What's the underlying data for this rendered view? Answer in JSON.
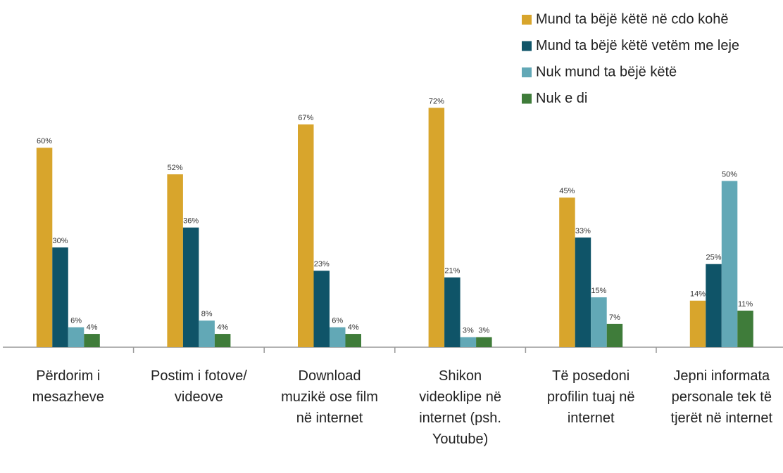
{
  "chart_data": {
    "type": "bar",
    "categories": [
      "Përdorim i mesazheve",
      "Postim i fotove/ videove",
      "Download muzikë ose film në internet",
      "Shikon videoklipe në internet (psh. Youtube)",
      "Të posedoni profilin tuaj në internet",
      "Jepni informata personale tek të tjerët në internet"
    ],
    "series": [
      {
        "name": "Mund ta bëjë këtë në cdo kohë",
        "color": "#d8a52c",
        "values": [
          60,
          52,
          67,
          72,
          45,
          14
        ],
        "value_labels": [
          "60%",
          "52%",
          "67%",
          "72%",
          "45%",
          "14%"
        ]
      },
      {
        "name": "Mund ta bëjë këtë vetëm me leje",
        "color": "#0f5468",
        "values": [
          30,
          36,
          23,
          21,
          33,
          25
        ],
        "value_labels": [
          "30%",
          "36%",
          "23%",
          "21%",
          "33%",
          "25%"
        ]
      },
      {
        "name": "Nuk mund ta bëjë këtë",
        "color": "#62a8b6",
        "values": [
          6,
          8,
          6,
          3,
          15,
          50
        ],
        "value_labels": [
          "6%",
          "8%",
          "6%",
          "3%",
          "15%",
          "50%"
        ]
      },
      {
        "name": "Nuk e di",
        "color": "#3f7c3a",
        "values": [
          4,
          4,
          4,
          3,
          7,
          11
        ],
        "value_labels": [
          "4%",
          "4%",
          "4%",
          "3%",
          "7%",
          "11%"
        ]
      }
    ],
    "legend": "top-right"
  }
}
